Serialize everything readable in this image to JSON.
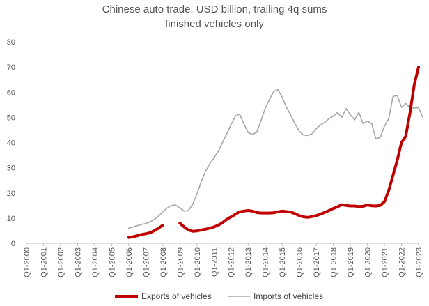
{
  "chart_data": {
    "type": "line",
    "title": "Chinese auto trade, USD billion, trailing 4q sums",
    "subtitle": "finished vehicles only",
    "xlabel": "",
    "ylabel": "",
    "ylim": [
      0,
      80
    ],
    "yticks": [
      "0",
      "10",
      "20",
      "30",
      "40",
      "50",
      "60",
      "70",
      "80"
    ],
    "xticks": [
      "Q1-2000",
      "Q1-2001",
      "Q1-2002",
      "Q1-2003",
      "Q1-2004",
      "Q1-2005",
      "Q1-2006",
      "Q1-2007",
      "Q1-2008",
      "Q1-2009",
      "Q1-2010",
      "Q1-2011",
      "Q1-2012",
      "Q1-2013",
      "Q1-2014",
      "Q1-2015",
      "Q1-2016",
      "Q1-2017",
      "Q1-2018",
      "Q1-2019",
      "Q1-2020",
      "Q1-2021",
      "Q1-2022",
      "Q1-2023"
    ],
    "grid": false,
    "legend_position": "bottom",
    "series": [
      {
        "name": "Exports of vehicles",
        "color": "#c00000",
        "points": [
          [
            2006.0,
            2.3
          ],
          [
            2006.25,
            2.6
          ],
          [
            2006.5,
            3.0
          ],
          [
            2006.75,
            3.5
          ],
          [
            2007.0,
            3.8
          ],
          [
            2007.25,
            4.2
          ],
          [
            2007.5,
            5.0
          ],
          [
            2007.75,
            6.0
          ],
          [
            2008.0,
            7.2
          ],
          [
            2009.0,
            8.0
          ],
          [
            2009.25,
            6.5
          ],
          [
            2009.5,
            5.3
          ],
          [
            2009.75,
            4.8
          ],
          [
            2010.0,
            4.9
          ],
          [
            2010.25,
            5.3
          ],
          [
            2010.5,
            5.6
          ],
          [
            2010.75,
            6.0
          ],
          [
            2011.0,
            6.5
          ],
          [
            2011.25,
            7.2
          ],
          [
            2011.5,
            8.2
          ],
          [
            2011.75,
            9.5
          ],
          [
            2012.0,
            10.5
          ],
          [
            2012.25,
            11.5
          ],
          [
            2012.5,
            12.5
          ],
          [
            2012.75,
            12.8
          ],
          [
            2013.0,
            13.0
          ],
          [
            2013.25,
            12.8
          ],
          [
            2013.5,
            12.2
          ],
          [
            2013.75,
            12.0
          ],
          [
            2014.0,
            12.0
          ],
          [
            2014.25,
            12.0
          ],
          [
            2014.5,
            12.1
          ],
          [
            2014.75,
            12.5
          ],
          [
            2015.0,
            12.8
          ],
          [
            2015.25,
            12.6
          ],
          [
            2015.5,
            12.4
          ],
          [
            2015.75,
            11.8
          ],
          [
            2016.0,
            11.0
          ],
          [
            2016.25,
            10.5
          ],
          [
            2016.5,
            10.3
          ],
          [
            2016.75,
            10.6
          ],
          [
            2017.0,
            11.0
          ],
          [
            2017.25,
            11.6
          ],
          [
            2017.5,
            12.3
          ],
          [
            2017.75,
            13.0
          ],
          [
            2018.0,
            13.8
          ],
          [
            2018.25,
            14.5
          ],
          [
            2018.5,
            15.3
          ],
          [
            2018.75,
            15.0
          ],
          [
            2019.0,
            14.8
          ],
          [
            2019.25,
            14.8
          ],
          [
            2019.5,
            14.6
          ],
          [
            2019.75,
            14.7
          ],
          [
            2020.0,
            15.2
          ],
          [
            2020.25,
            14.9
          ],
          [
            2020.5,
            14.8
          ],
          [
            2020.75,
            15.0
          ],
          [
            2021.0,
            16.5
          ],
          [
            2021.25,
            21.0
          ],
          [
            2021.5,
            27.0
          ],
          [
            2021.75,
            33.0
          ],
          [
            2022.0,
            40.0
          ],
          [
            2022.25,
            42.5
          ],
          [
            2022.5,
            52.0
          ],
          [
            2022.75,
            63.0
          ],
          [
            2023.0,
            70.0
          ]
        ]
      },
      {
        "name": "Imports of vehicles",
        "color": "#a6a6a6",
        "points": [
          [
            2006.0,
            6.0
          ],
          [
            2006.25,
            6.5
          ],
          [
            2006.5,
            7.0
          ],
          [
            2006.75,
            7.5
          ],
          [
            2007.0,
            7.8
          ],
          [
            2007.25,
            8.5
          ],
          [
            2007.5,
            9.5
          ],
          [
            2007.75,
            10.8
          ],
          [
            2008.0,
            12.5
          ],
          [
            2008.25,
            14.0
          ],
          [
            2008.5,
            15.0
          ],
          [
            2008.75,
            15.2
          ],
          [
            2009.0,
            14.0
          ],
          [
            2009.25,
            12.8
          ],
          [
            2009.5,
            13.0
          ],
          [
            2009.75,
            15.5
          ],
          [
            2010.0,
            19.5
          ],
          [
            2010.25,
            24.5
          ],
          [
            2010.5,
            28.5
          ],
          [
            2010.75,
            31.5
          ],
          [
            2011.0,
            34.0
          ],
          [
            2011.25,
            36.5
          ],
          [
            2011.5,
            40.0
          ],
          [
            2011.75,
            43.5
          ],
          [
            2012.0,
            47.0
          ],
          [
            2012.25,
            50.5
          ],
          [
            2012.5,
            51.3
          ],
          [
            2012.75,
            47.5
          ],
          [
            2013.0,
            44.0
          ],
          [
            2013.25,
            43.2
          ],
          [
            2013.5,
            44.0
          ],
          [
            2013.75,
            48.5
          ],
          [
            2014.0,
            53.5
          ],
          [
            2014.25,
            57.0
          ],
          [
            2014.5,
            60.3
          ],
          [
            2014.75,
            61.0
          ],
          [
            2015.0,
            58.0
          ],
          [
            2015.25,
            54.0
          ],
          [
            2015.5,
            51.0
          ],
          [
            2015.75,
            47.5
          ],
          [
            2016.0,
            44.5
          ],
          [
            2016.25,
            43.0
          ],
          [
            2016.5,
            42.8
          ],
          [
            2016.75,
            43.5
          ],
          [
            2017.0,
            45.5
          ],
          [
            2017.25,
            47.0
          ],
          [
            2017.5,
            48.0
          ],
          [
            2017.75,
            49.5
          ],
          [
            2018.0,
            50.5
          ],
          [
            2018.25,
            52.0
          ],
          [
            2018.5,
            50.0
          ],
          [
            2018.75,
            53.5
          ],
          [
            2019.0,
            51.0
          ],
          [
            2019.25,
            49.0
          ],
          [
            2019.5,
            52.0
          ],
          [
            2019.75,
            47.5
          ],
          [
            2020.0,
            48.5
          ],
          [
            2020.25,
            47.5
          ],
          [
            2020.5,
            41.5
          ],
          [
            2020.75,
            42.0
          ],
          [
            2021.0,
            46.5
          ],
          [
            2021.25,
            49.5
          ],
          [
            2021.5,
            58.3
          ],
          [
            2021.75,
            58.7
          ],
          [
            2022.0,
            54.0
          ],
          [
            2022.25,
            55.5
          ],
          [
            2022.5,
            53.8
          ],
          [
            2022.75,
            53.7
          ],
          [
            2023.0,
            53.8
          ],
          [
            2023.25,
            50.0
          ]
        ]
      }
    ]
  }
}
